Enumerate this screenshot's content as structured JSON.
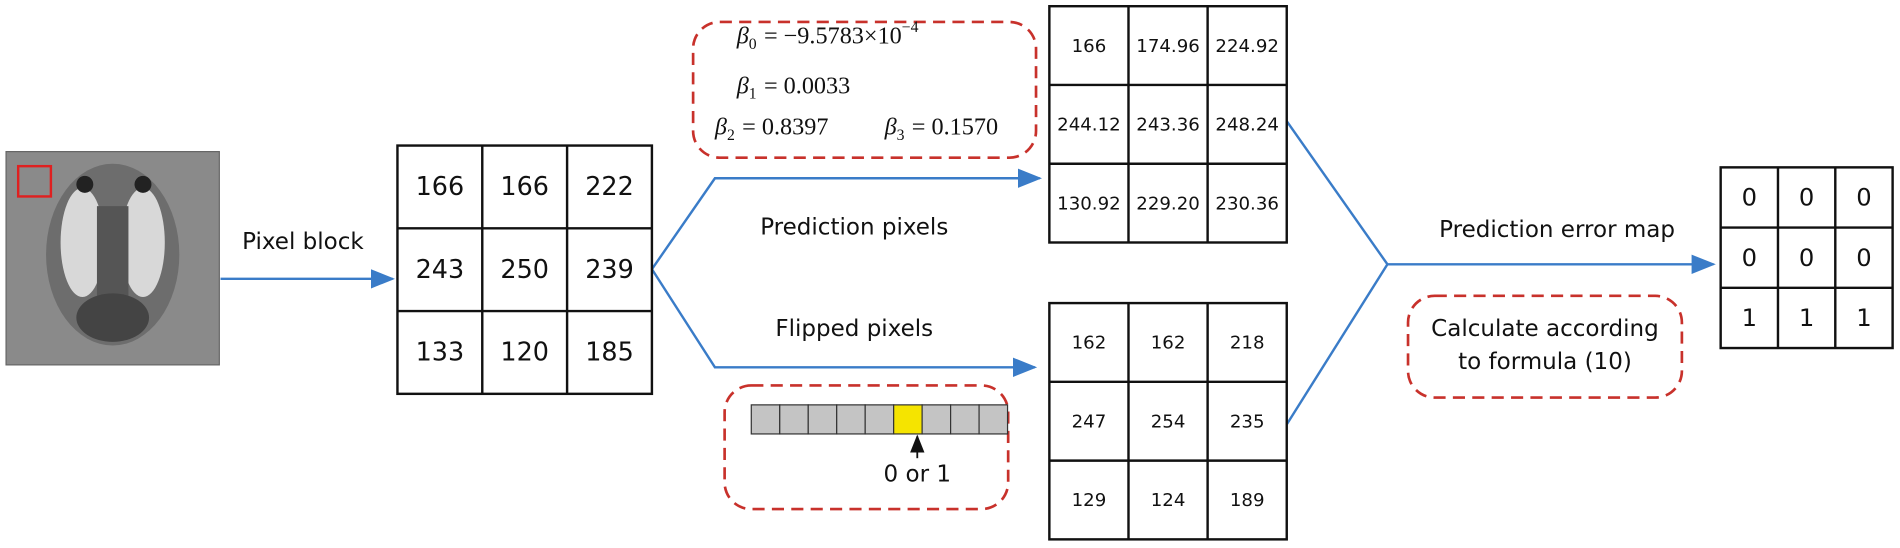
{
  "labels": {
    "pixel_block": "Pixel block",
    "prediction_pixels": "Prediction pixels",
    "flipped_pixels": "Flipped pixels",
    "prediction_error_map": "Prediction error map",
    "bit": "0 or 1"
  },
  "formulas": [
    {
      "symbol": "β",
      "subscript": "0",
      "expression": "= −9.5783×10",
      "exponent": "−4"
    },
    {
      "symbol": "β",
      "subscript": "1",
      "expression": "= 0.0033"
    },
    {
      "symbol": "β",
      "subscript": "2",
      "expression": "= 0.8397"
    },
    {
      "symbol": "β",
      "subscript": "3",
      "expression": "= 0.1570"
    }
  ],
  "note": {
    "line1": "Calculate according",
    "line2": "to formula (10)"
  },
  "pixel_block": {
    "rows": [
      [
        "166",
        "166",
        "222"
      ],
      [
        "243",
        "250",
        "239"
      ],
      [
        "133",
        "120",
        "185"
      ]
    ]
  },
  "prediction_block": {
    "rows": [
      [
        "166",
        "174.96",
        "224.92"
      ],
      [
        "244.12",
        "243.36",
        "248.24"
      ],
      [
        "130.92",
        "229.20",
        "230.36"
      ]
    ]
  },
  "flipped_block": {
    "rows": [
      [
        "162",
        "162",
        "218"
      ],
      [
        "247",
        "254",
        "235"
      ],
      [
        "129",
        "124",
        "189"
      ]
    ]
  },
  "error_map": {
    "rows": [
      [
        "0",
        "0",
        "0"
      ],
      [
        "0",
        "0",
        "0"
      ],
      [
        "1",
        "1",
        "1"
      ]
    ]
  }
}
